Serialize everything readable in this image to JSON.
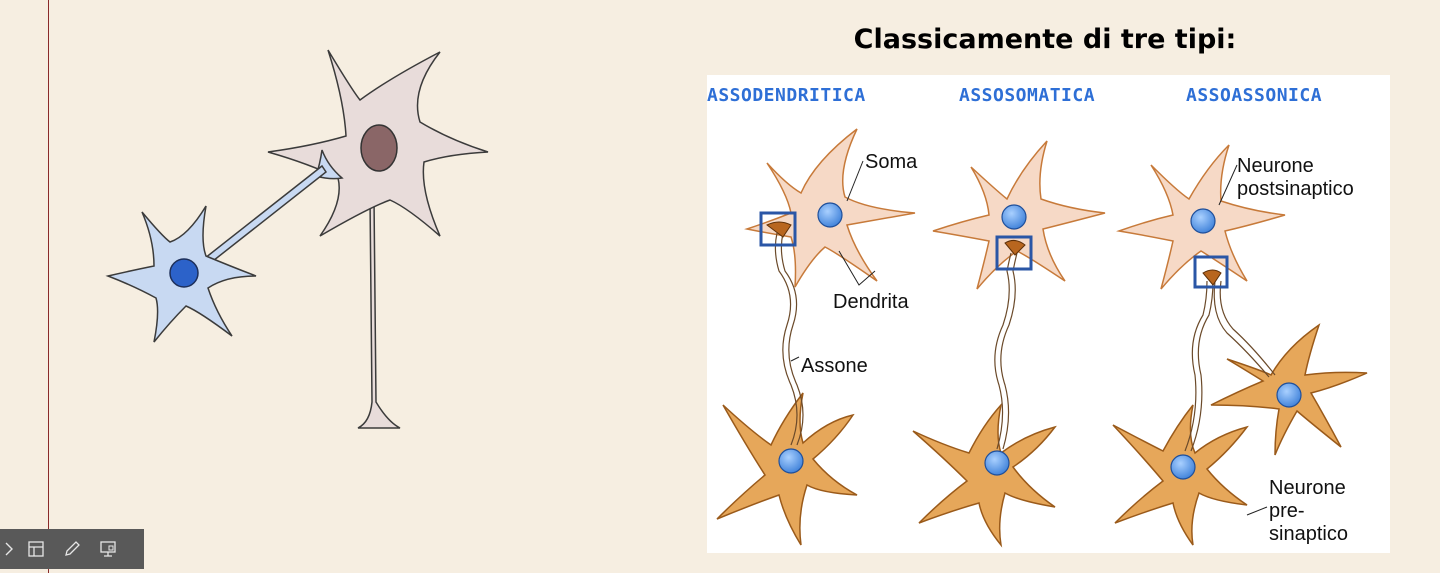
{
  "slide": {
    "title": "Classicamente di tre tipi:"
  },
  "figure": {
    "headers": [
      "ASSODENDRITICA",
      "ASSOSOMATICA",
      "ASSOASSONICA"
    ],
    "labels": {
      "soma": "Soma",
      "dendrite": "Dendrita",
      "axon": "Assone",
      "post_line1": "Neurone",
      "post_line2": "postsinaptico",
      "pre_line1": "Neurone",
      "pre_line2": "pre-",
      "pre_line3": "sinaptico"
    },
    "colors": {
      "header": "#2e6fd6",
      "highlight_box": "#2a56a6",
      "nucleus": "#5b9be6",
      "neuron_post": "#f6d9c6",
      "neuron_pre": "#e6a75a"
    }
  },
  "toolbar": {
    "icons": [
      "chevron-left-icon",
      "slide-layout-icon",
      "pen-icon",
      "presenter-view-icon"
    ]
  },
  "colors": {
    "background": "#f6eee1",
    "margin_line": "#8a2a2a",
    "neuron_blue_fill": "#c8d9f2",
    "neuron_blue_nucleus": "#2c62c9",
    "neuron_gray_fill": "#e8dcda",
    "neuron_gray_nucleus": "#8a6667"
  }
}
